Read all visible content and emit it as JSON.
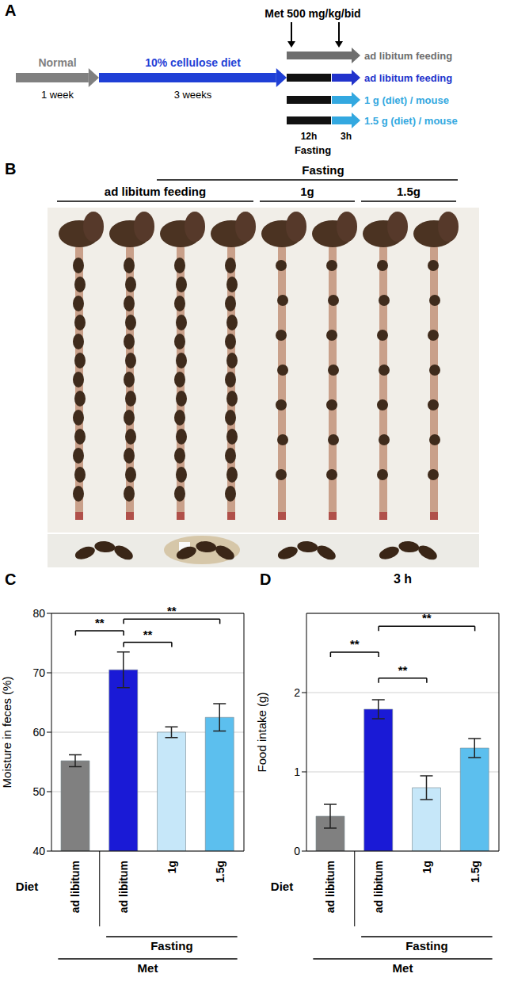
{
  "panel_letters": [
    "A",
    "B",
    "C",
    "D"
  ],
  "diagram": {
    "steps": [
      {
        "label": "Normal",
        "duration": "1 week",
        "color": "#808080"
      },
      {
        "label": "10% cellulose diet",
        "duration": "3 weeks",
        "color": "#1f3fd6"
      }
    ],
    "treatment": "Met 500 mg/kg/bid",
    "fasting_durations": [
      "12h",
      "3h"
    ],
    "fasting_label": "Fasting",
    "arms": [
      {
        "label": "ad libitum feeding",
        "color": "#6e6e6e",
        "fasting": false
      },
      {
        "label": "ad libitum feeding",
        "color": "#2233cc",
        "fasting": true
      },
      {
        "label": "1 g (diet) / mouse",
        "color": "#33a8e0",
        "fasting": true
      },
      {
        "label": "1.5 g (diet) / mouse",
        "color": "#33a8e0",
        "fasting": true
      }
    ]
  },
  "photo": {
    "header": "Fasting",
    "groups": [
      "ad libitum feeding",
      "1g",
      "1.5g"
    ]
  },
  "chart_data": [
    {
      "type": "bar",
      "ylabel": "Moisture in feces (%)",
      "xlabel": "Diet",
      "categories": [
        "ad libitum",
        "ad libitum",
        "1g",
        "1.5g"
      ],
      "values": [
        55.2,
        70.5,
        60.0,
        62.5
      ],
      "errors": [
        1.0,
        3.0,
        0.9,
        2.3
      ],
      "colors": [
        "#808080",
        "#1a1ad6",
        "#c6e7f9",
        "#5cbfee"
      ],
      "ylim": [
        40,
        80
      ],
      "yticks": [
        40,
        50,
        60,
        70,
        80
      ],
      "grid": true,
      "groups": [
        {
          "label": "Fasting",
          "from": 1,
          "to": 3
        },
        {
          "label": "Met",
          "from": 0,
          "to": 3
        }
      ],
      "annotations": [
        {
          "from": 1,
          "to": 2,
          "label": "**"
        },
        {
          "from": 0,
          "to": 1,
          "label": "**"
        },
        {
          "from": 1,
          "to": 3,
          "label": "**"
        }
      ]
    },
    {
      "type": "bar",
      "title": "3 h",
      "ylabel": "Food intake (g)",
      "xlabel": "Diet",
      "categories": [
        "ad libitum",
        "ad libitum",
        "1g",
        "1.5g"
      ],
      "values": [
        0.44,
        1.79,
        0.8,
        1.3
      ],
      "errors": [
        0.15,
        0.12,
        0.15,
        0.12
      ],
      "colors": [
        "#808080",
        "#1a1ad6",
        "#c6e7f9",
        "#5cbfee"
      ],
      "ylim": [
        0,
        3
      ],
      "yticks": [
        0,
        1,
        2
      ],
      "grid": true,
      "groups": [
        {
          "label": "Fasting",
          "from": 1,
          "to": 3
        },
        {
          "label": "Met",
          "from": 0,
          "to": 3
        }
      ],
      "annotations": [
        {
          "from": 1,
          "to": 2,
          "label": "**"
        },
        {
          "from": 0,
          "to": 1,
          "label": "**"
        },
        {
          "from": 1,
          "to": 3,
          "label": "**"
        }
      ]
    }
  ]
}
